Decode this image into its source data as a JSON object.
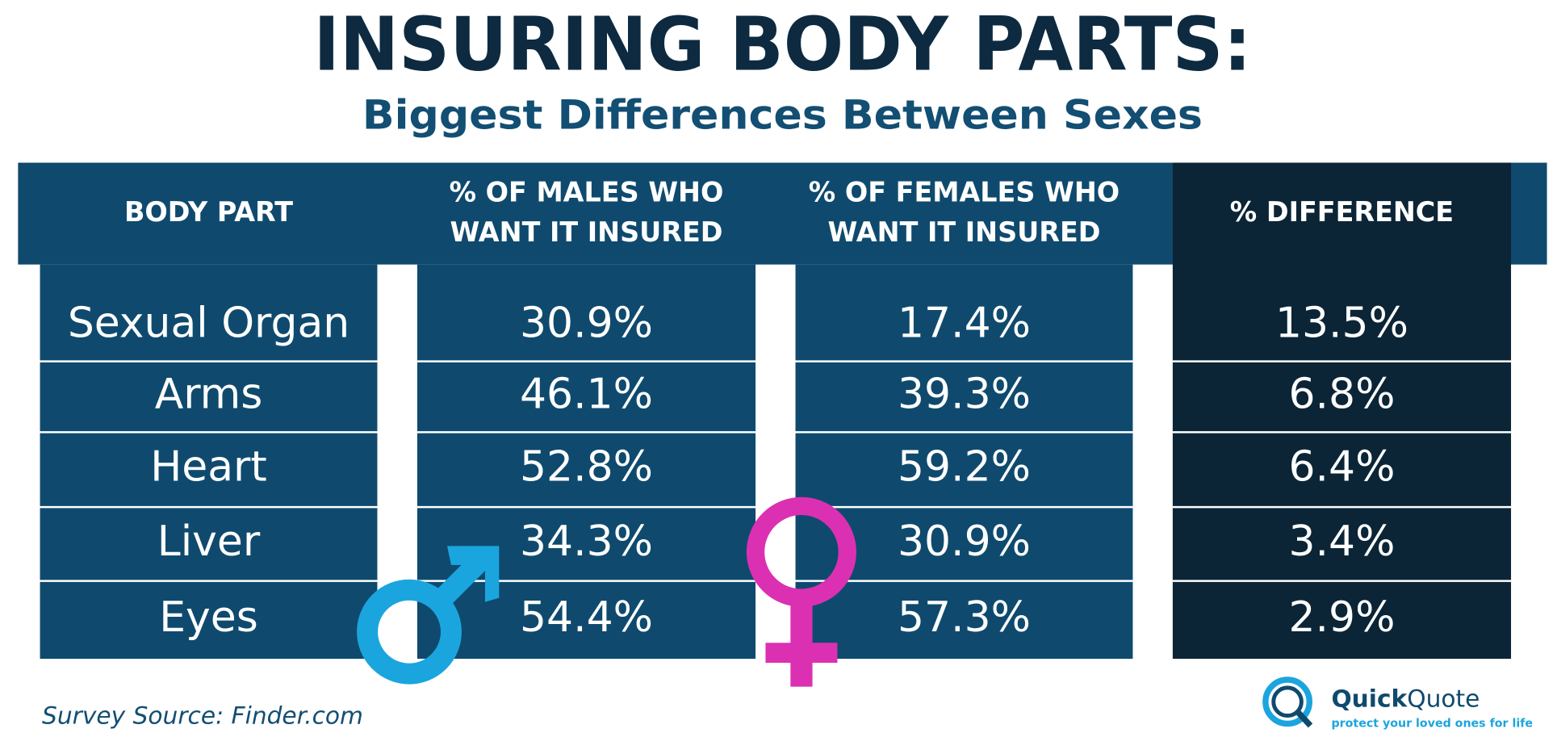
{
  "header": {
    "title": "INSURING BODY PARTS:",
    "subtitle": "Biggest Differences Between Sexes"
  },
  "table": {
    "columns": [
      [
        "BODY PART"
      ],
      [
        "% OF MALES WHO",
        "WANT IT INSURED"
      ],
      [
        "% OF FEMALES WHO",
        "WANT IT INSURED"
      ],
      [
        "% DIFFERENCE"
      ]
    ],
    "rows": [
      [
        "Sexual Organ",
        "30.9%",
        "17.4%",
        "13.5%"
      ],
      [
        "Arms",
        "46.1%",
        "39.3%",
        "6.8%"
      ],
      [
        "Heart",
        "52.8%",
        "59.2%",
        "6.4%"
      ],
      [
        "Liver",
        "34.3%",
        "30.9%",
        "3.4%"
      ],
      [
        "Eyes",
        "54.4%",
        "57.3%",
        "2.9%"
      ]
    ]
  },
  "footer": {
    "source": "Survey Source: Finder.com"
  },
  "logo": {
    "name_bold": "Quick",
    "name_light": "Quote",
    "tagline": "protect your loved ones for life"
  }
}
